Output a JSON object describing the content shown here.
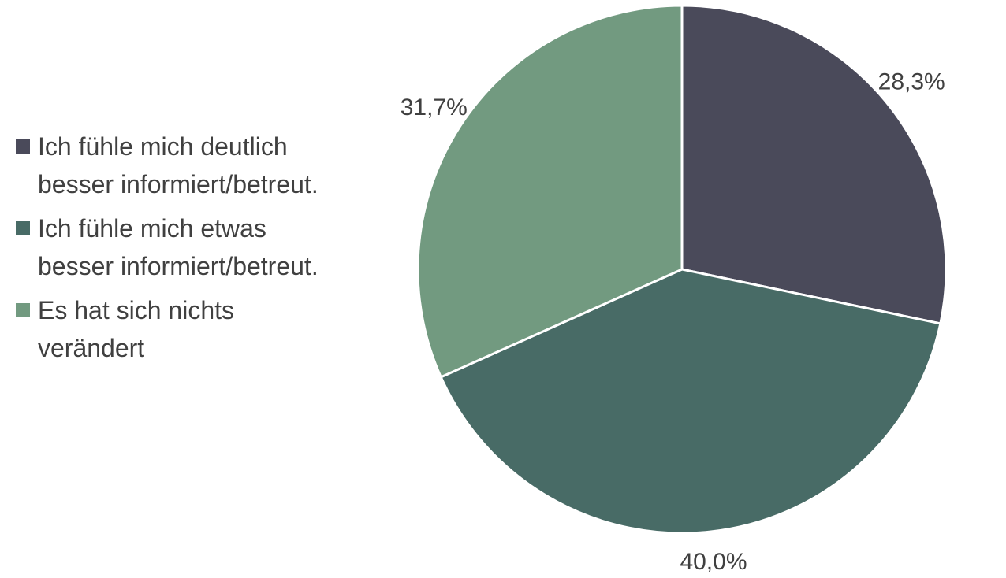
{
  "chart_data": {
    "type": "pie",
    "categories": [
      "Ich fühle mich deutlich besser informiert/betreut.",
      "Ich fühle mich etwas besser informiert/betreut.",
      "Es hat sich nichts verändert"
    ],
    "values": [
      28.3,
      40.0,
      31.7
    ],
    "value_labels": [
      "28,3%",
      "40,0%",
      "31,7%"
    ],
    "colors": [
      "#4a4a5a",
      "#486b66",
      "#729a80"
    ],
    "legend": "left"
  }
}
